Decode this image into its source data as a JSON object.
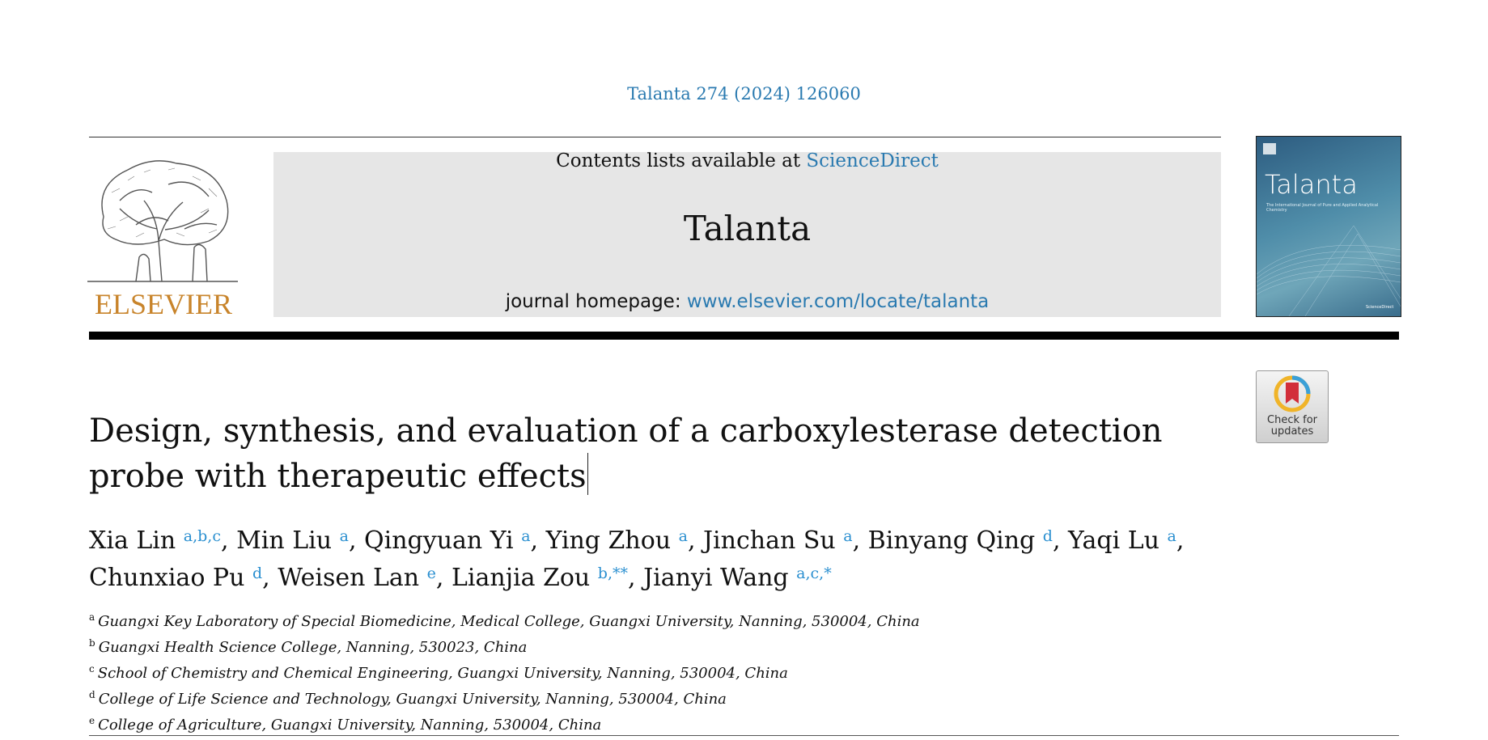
{
  "citation": "Talanta 274 (2024) 126060",
  "banner": {
    "contents_prefix": "Contents lists available at ",
    "contents_link": "ScienceDirect",
    "journal": "Talanta",
    "homepage_prefix": "journal homepage: ",
    "homepage_link": "www.elsevier.com/locate/talanta"
  },
  "publisher_logo": "ELSEVIER",
  "cover": {
    "title": "Talanta",
    "subtitle": "The International Journal of Pure and Applied Analytical Chemistry",
    "footer": "ScienceDirect"
  },
  "crossmark": {
    "label": "Check for updates"
  },
  "article": {
    "title": "Design, synthesis, and evaluation of a carboxylesterase detection probe with therapeutic effects"
  },
  "authors": [
    {
      "name": "Xia Lin",
      "sup": "a,b,c",
      "sep": ", "
    },
    {
      "name": "Min Liu",
      "sup": "a",
      "sep": ", "
    },
    {
      "name": "Qingyuan Yi",
      "sup": "a",
      "sep": ", "
    },
    {
      "name": "Ying Zhou",
      "sup": "a",
      "sep": ", "
    },
    {
      "name": "Jinchan Su",
      "sup": "a",
      "sep": ", "
    },
    {
      "name": "Binyang Qing",
      "sup": "d",
      "sep": ", "
    },
    {
      "name": "Yaqi Lu",
      "sup": "a",
      "sep": ","
    },
    {
      "name": "Chunxiao Pu",
      "sup": "d",
      "sep": ", "
    },
    {
      "name": "Weisen Lan",
      "sup": "e",
      "sep": ", "
    },
    {
      "name": "Lianjia Zou",
      "sup": "b,**",
      "sep": ", "
    },
    {
      "name": "Jianyi Wang",
      "sup": "a,c,*",
      "sep": ""
    }
  ],
  "affiliations": [
    {
      "key": "a",
      "text": "Guangxi Key Laboratory of Special Biomedicine, Medical College, Guangxi University, Nanning, 530004, China"
    },
    {
      "key": "b",
      "text": "Guangxi Health Science College, Nanning, 530023, China"
    },
    {
      "key": "c",
      "text": "School of Chemistry and Chemical Engineering, Guangxi University, Nanning, 530004, China"
    },
    {
      "key": "d",
      "text": "College of Life Science and Technology, Guangxi University, Nanning, 530004, China"
    },
    {
      "key": "e",
      "text": "College of Agriculture, Guangxi University, Nanning, 530004, China"
    }
  ],
  "colors": {
    "link": "#2a7ab0",
    "elsevier_orange": "#c8842b",
    "rule": "#000000"
  }
}
